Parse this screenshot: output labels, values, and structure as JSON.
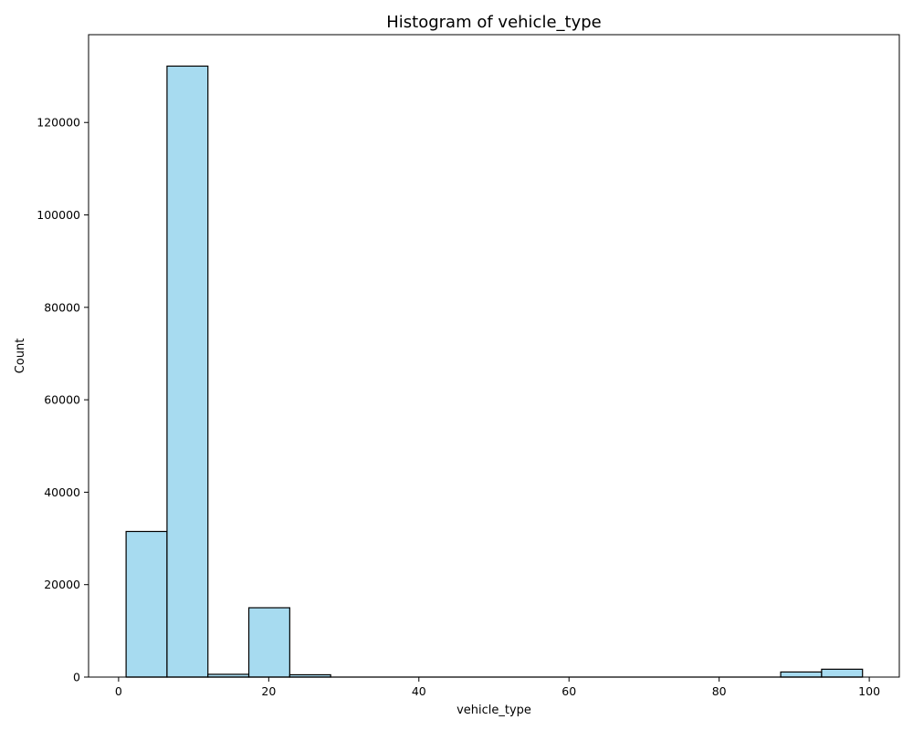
{
  "chart_data": {
    "type": "bar",
    "title": "Histogram of vehicle_type",
    "xlabel": "vehicle_type",
    "ylabel": "Count",
    "xlim": [
      -4,
      104
    ],
    "ylim": [
      0,
      139000
    ],
    "x_ticks": [
      0,
      20,
      40,
      60,
      80,
      100
    ],
    "y_ticks": [
      0,
      20000,
      40000,
      60000,
      80000,
      100000,
      120000
    ],
    "bin_edges": [
      1,
      6.45,
      11.9,
      17.35,
      22.8,
      28.25,
      33.7,
      39.15,
      44.6,
      50.05,
      55.5,
      60.95,
      66.4,
      71.85,
      77.3,
      82.75,
      88.2,
      93.65,
      99.1
    ],
    "values": [
      31500,
      132200,
      600,
      15000,
      500,
      0,
      0,
      0,
      0,
      0,
      0,
      0,
      0,
      0,
      0,
      0,
      1100,
      1700
    ],
    "bar_color": "#a7dbf0",
    "edge_color": "#000000",
    "grid": false
  }
}
